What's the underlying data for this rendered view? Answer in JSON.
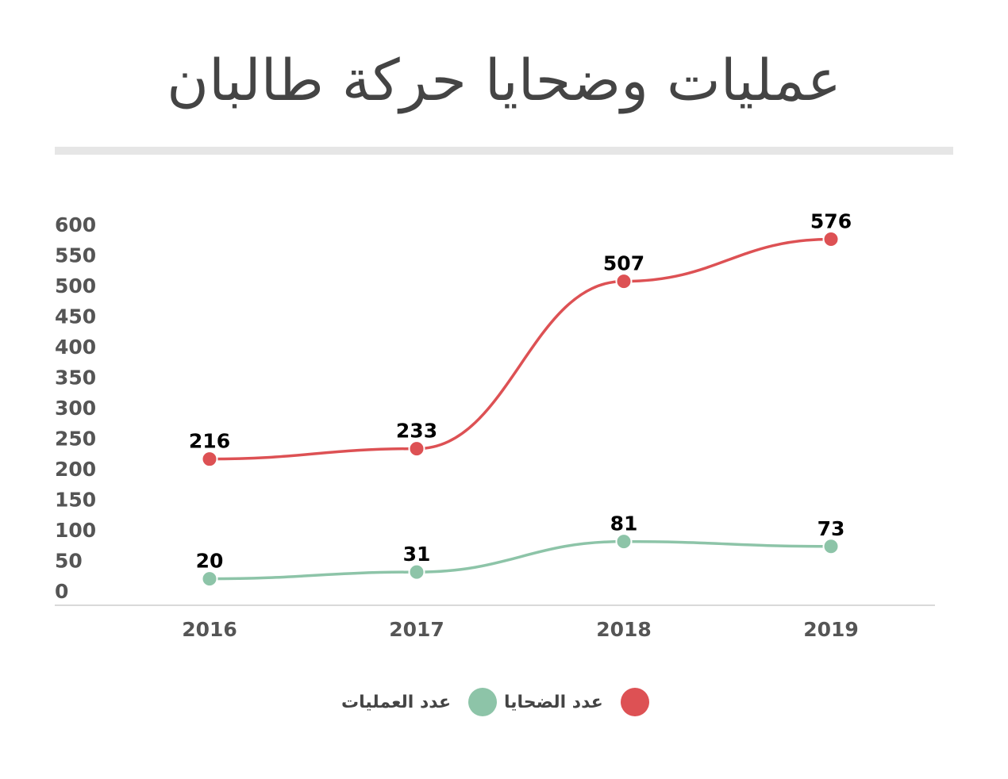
{
  "title": "عمليات وضحايا حركة طالبان",
  "legend": {
    "victims_label": "عدد الضحايا",
    "operations_label": "عدد العمليات"
  },
  "colors": {
    "victims": "#dd5154",
    "operations": "#8dc4a8",
    "tick_text": "#555555",
    "label_text": "#000000",
    "axis_line": "#d9d9d9"
  },
  "chart_data": {
    "type": "line",
    "title": "عمليات وضحايا حركة طالبان",
    "xlabel": "",
    "ylabel": "",
    "categories": [
      "2016",
      "2017",
      "2018",
      "2019"
    ],
    "ylim": [
      0,
      600
    ],
    "y_ticks": [
      0,
      50,
      100,
      150,
      200,
      250,
      300,
      350,
      400,
      450,
      500,
      550,
      600
    ],
    "grid": false,
    "smooth": true,
    "legend_position": "bottom",
    "series": [
      {
        "name": "عدد الضحايا",
        "color": "#dd5154",
        "values": [
          216,
          233,
          507,
          576
        ]
      },
      {
        "name": "عدد العمليات",
        "color": "#8dc4a8",
        "values": [
          20,
          31,
          81,
          73
        ]
      }
    ]
  }
}
